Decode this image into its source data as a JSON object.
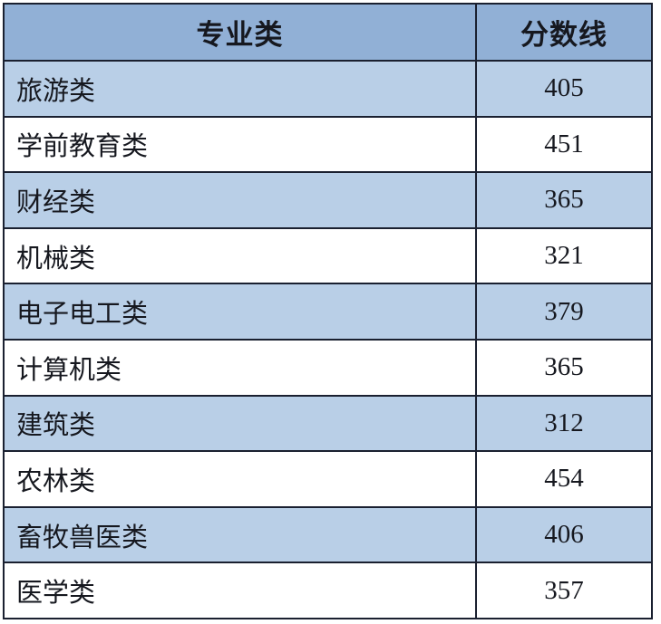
{
  "table": {
    "headers": [
      {
        "label": "专业类"
      },
      {
        "label": "分数线"
      }
    ],
    "rows": [
      {
        "category": "旅游类",
        "score": "405"
      },
      {
        "category": "学前教育类",
        "score": "451"
      },
      {
        "category": "财经类",
        "score": "365"
      },
      {
        "category": "机械类",
        "score": "321"
      },
      {
        "category": "电子电工类",
        "score": "379"
      },
      {
        "category": "计算机类",
        "score": "365"
      },
      {
        "category": "建筑类",
        "score": "312"
      },
      {
        "category": "农林类",
        "score": "454"
      },
      {
        "category": "畜牧兽医类",
        "score": "406"
      },
      {
        "category": "医学类",
        "score": "357"
      }
    ]
  },
  "colors": {
    "header_bg": "#91b0d6",
    "stripe_row_bg": "#b9cfe7",
    "plain_row_bg": "#ffffff",
    "border": "#1a2030",
    "text": "#16181f"
  },
  "chart_data": {
    "type": "table",
    "title": "",
    "columns": [
      "专业类",
      "分数线"
    ],
    "categories": [
      "旅游类",
      "学前教育类",
      "财经类",
      "机械类",
      "电子电工类",
      "计算机类",
      "建筑类",
      "农林类",
      "畜牧兽医类",
      "医学类"
    ],
    "values": [
      405,
      451,
      365,
      321,
      379,
      365,
      312,
      454,
      406,
      357
    ]
  }
}
